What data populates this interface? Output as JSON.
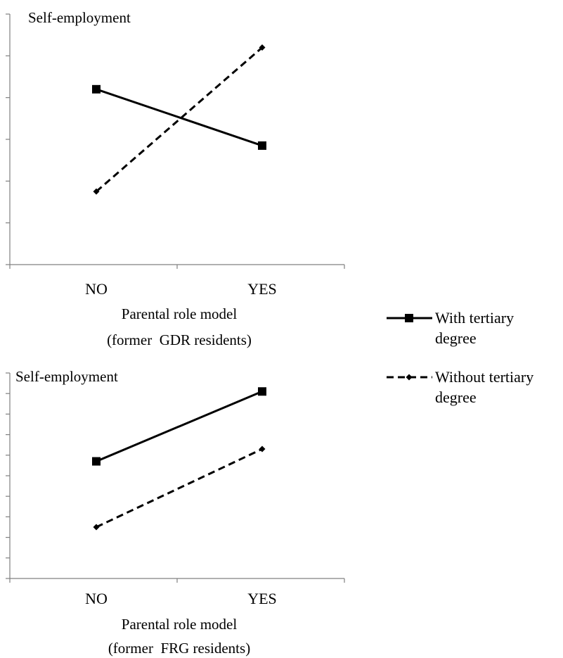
{
  "chart_data": [
    {
      "type": "line",
      "title": "",
      "ylabel": "Self-employment",
      "xlabel_lines": [
        "Parental role model",
        "(former  GDR residents)"
      ],
      "categories": [
        "NO",
        "YES"
      ],
      "ylim": [
        0,
        6
      ],
      "y_ticks": 6,
      "series": [
        {
          "name": "With tertiary degree",
          "style": "solid",
          "marker": "square",
          "values": [
            4.2,
            2.85
          ]
        },
        {
          "name": "Without tertiary degree",
          "style": "dashed",
          "marker": "diamond",
          "values": [
            1.75,
            5.2
          ]
        }
      ]
    },
    {
      "type": "line",
      "title": "",
      "ylabel": "Self-employment",
      "xlabel_lines": [
        "Parental role model",
        "(former  FRG residents)"
      ],
      "categories": [
        "NO",
        "YES"
      ],
      "ylim": [
        0,
        10
      ],
      "y_ticks": 10,
      "series": [
        {
          "name": "With tertiary degree",
          "style": "solid",
          "marker": "square",
          "values": [
            5.7,
            9.1
          ]
        },
        {
          "name": "Without tertiary degree",
          "style": "dashed",
          "marker": "diamond",
          "values": [
            2.5,
            6.3
          ]
        }
      ]
    }
  ],
  "legend": {
    "items": [
      {
        "label_lines": [
          "With tertiary",
          "degree"
        ],
        "style": "solid",
        "marker": "square"
      },
      {
        "label_lines": [
          "Without tertiary",
          "degree"
        ],
        "style": "dashed",
        "marker": "diamond"
      }
    ]
  },
  "colors": {
    "line": "#000000",
    "axis": "#808080"
  }
}
